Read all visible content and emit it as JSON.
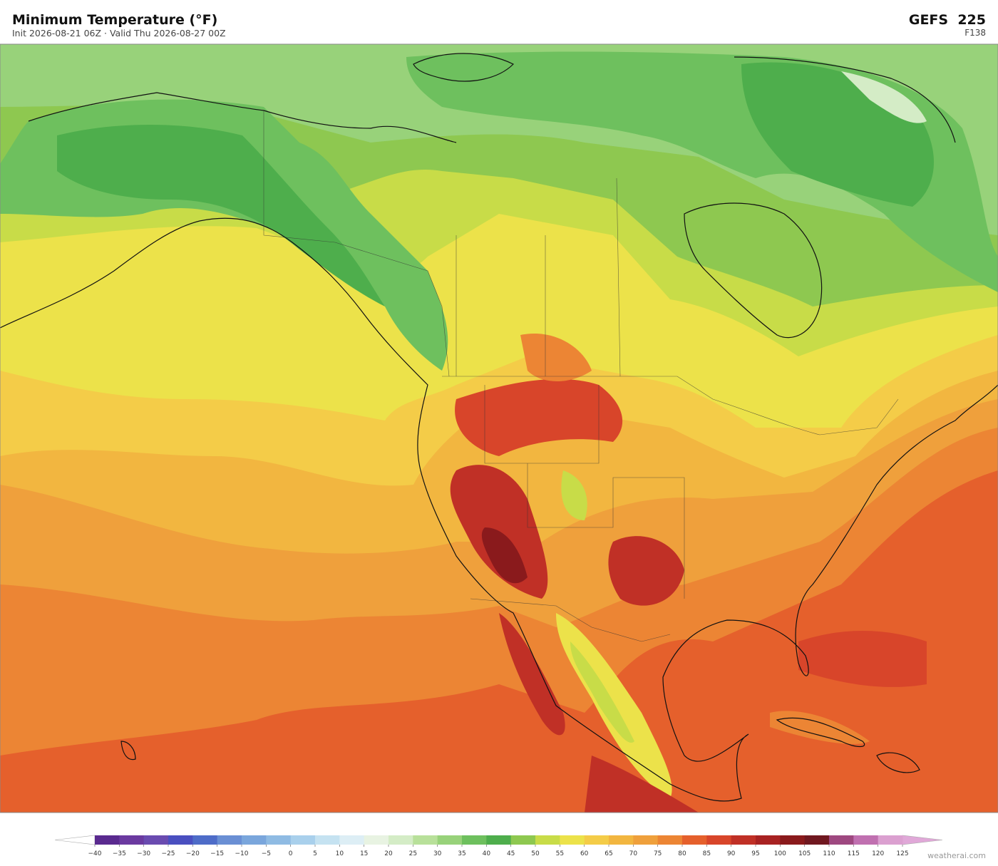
{
  "header": {
    "title": "Minimum Temperature  (°F)",
    "subtitle": "Init 2026-08-21 06Z  ·  Valid Thu 2026-08-27 00Z",
    "model": "GEFS  225",
    "forecast_hour": "F138"
  },
  "colorbar": {
    "ticks": [
      {
        "value": -40,
        "label": "−40"
      },
      {
        "value": -35,
        "label": "−35"
      },
      {
        "value": -30,
        "label": "−30"
      },
      {
        "value": -25,
        "label": "−25"
      },
      {
        "value": -20,
        "label": "−20"
      },
      {
        "value": -15,
        "label": "−15"
      },
      {
        "value": -10,
        "label": "−10"
      },
      {
        "value": -5,
        "label": "−5"
      },
      0,
      5,
      10,
      15,
      20,
      25,
      30,
      35,
      40,
      45,
      50,
      55,
      60,
      65,
      70,
      75,
      80,
      85,
      90,
      95,
      100,
      105,
      110,
      115,
      120,
      125
    ],
    "colors": [
      "#5a2a8f",
      "#6b3aa0",
      "#6a4bb0",
      "#4a4fc0",
      "#4e6cc8",
      "#6a8fd4",
      "#7aa6dc",
      "#8fbbe3",
      "#a9d0ec",
      "#c5e2f1",
      "#ddeef5",
      "#e8f3e2",
      "#d4ecc6",
      "#b8e09a",
      "#98d27a",
      "#6ec05e",
      "#4eae4c",
      "#8ec850",
      "#c8dc48",
      "#ece24a",
      "#f4cc48",
      "#f2b640",
      "#efa03c",
      "#ec8534",
      "#e5602c",
      "#d8452a",
      "#c03026",
      "#a82222",
      "#8a1a1c",
      "#701820",
      "#9e4880",
      "#c070b0",
      "#dba0d0"
    ],
    "under_color": "#ffffff",
    "over_color": "#e0a8d8"
  },
  "credit": "weatherai.com"
}
